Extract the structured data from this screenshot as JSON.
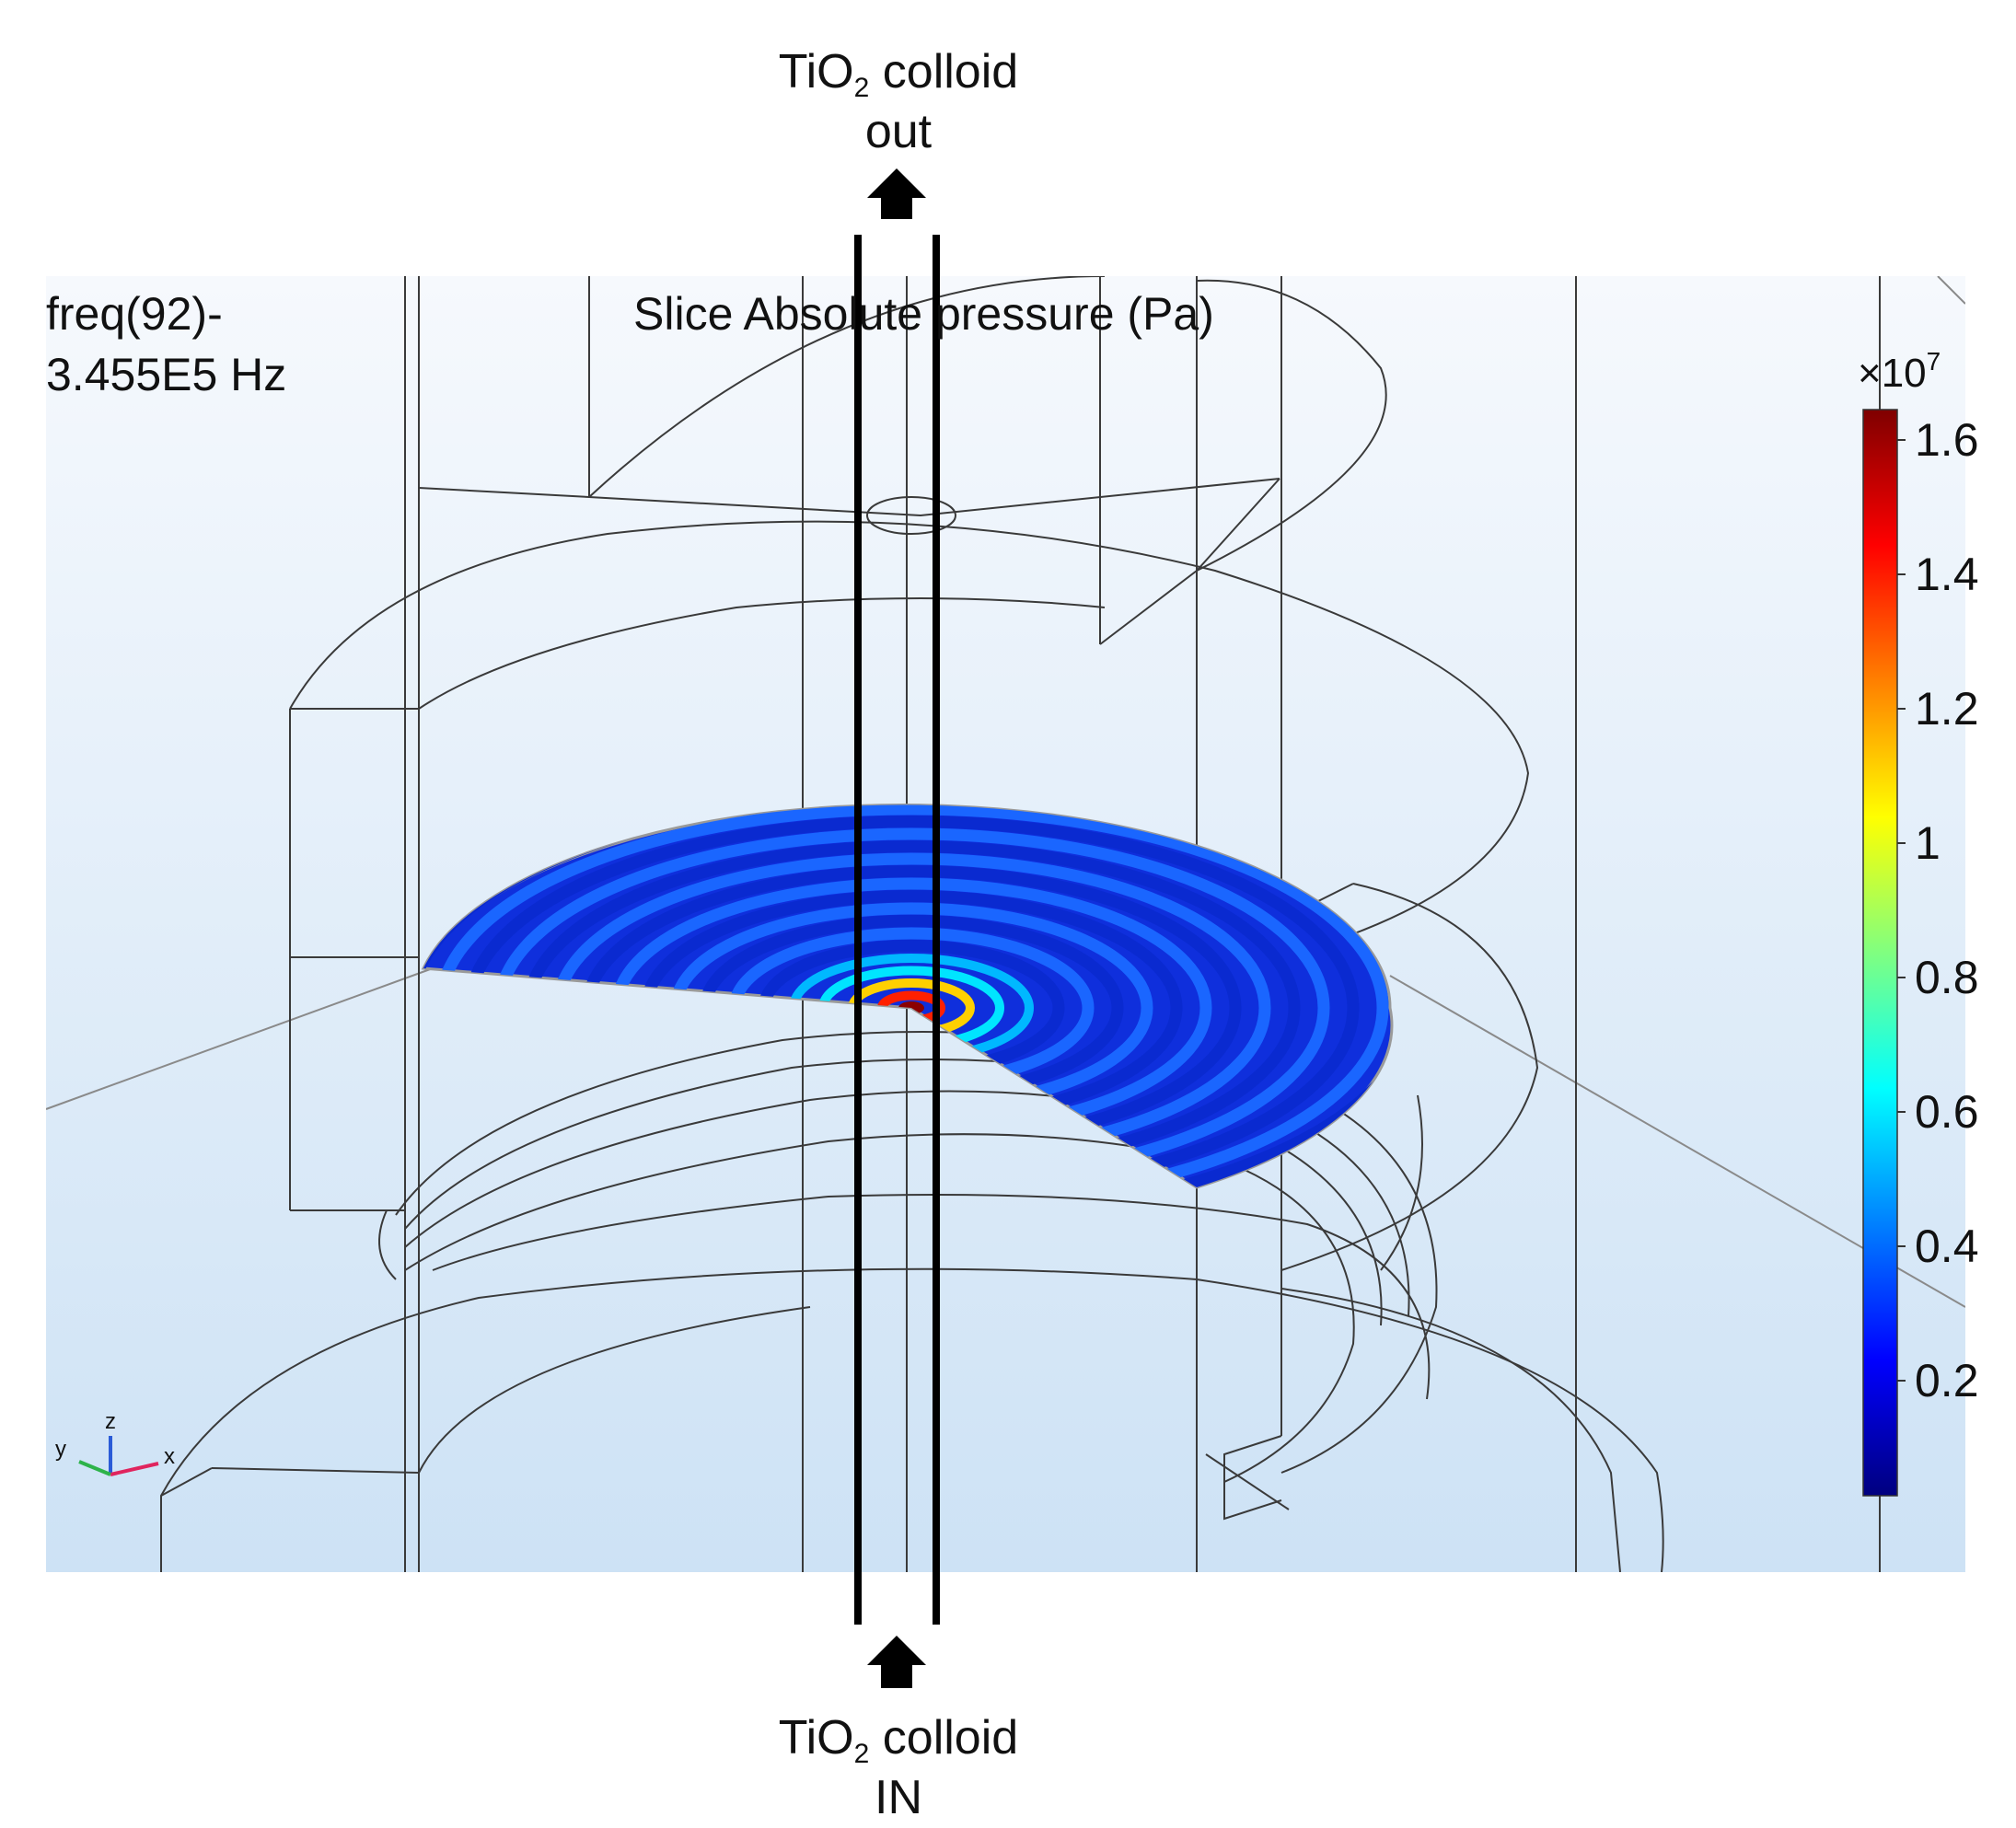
{
  "top_label": {
    "prefix": "TiO",
    "subscript": "2",
    "suffix": " colloid",
    "line2": "out"
  },
  "bottom_label": {
    "prefix": "TiO",
    "subscript": "2",
    "suffix": " colloid",
    "line2": "IN"
  },
  "frequency_label": {
    "line1": "freq(92)-",
    "line2": "3.455E5 Hz"
  },
  "plot_title": "Slice Absolute pressure (Pa)",
  "colorbar": {
    "multiplier_base": "×10",
    "multiplier_exp": "7",
    "ticks": [
      "1.6",
      "1.4",
      "1.2",
      "1",
      "0.8",
      "0.6",
      "0.4",
      "0.2"
    ],
    "colors": [
      "#00007f",
      "#0000ff",
      "#0080ff",
      "#00ffff",
      "#80ff80",
      "#ffff00",
      "#ff8000",
      "#ff0000",
      "#7f0000"
    ]
  },
  "axis_triad": {
    "x": "x",
    "y": "y",
    "z": "z"
  },
  "colors": {
    "background_top": "#f4f8fd",
    "background_bottom": "#cfe3f5",
    "wireframe": "#3a3a3a",
    "tube": "#000000"
  }
}
